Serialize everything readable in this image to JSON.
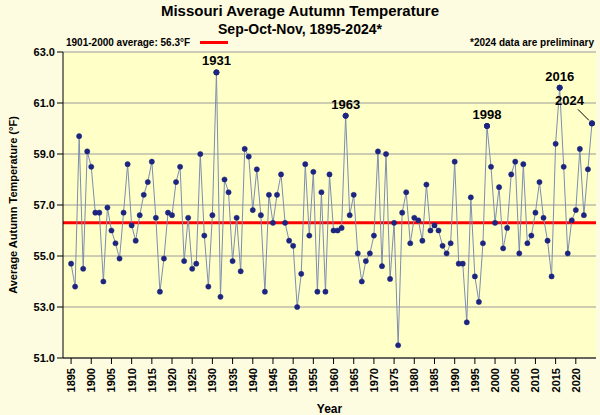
{
  "chart_data": {
    "type": "line",
    "title": "Missouri Average Autumn Temperature",
    "subtitle": "Sep-Oct-Nov, 1895-2024*",
    "note": "*2024 data are preliminary",
    "x_label": "Year",
    "y_label": "Average Autumn Temperature (°F)",
    "x": [
      1895,
      1896,
      1897,
      1898,
      1899,
      1900,
      1901,
      1902,
      1903,
      1904,
      1905,
      1906,
      1907,
      1908,
      1909,
      1910,
      1911,
      1912,
      1913,
      1914,
      1915,
      1916,
      1917,
      1918,
      1919,
      1920,
      1921,
      1922,
      1923,
      1924,
      1925,
      1926,
      1927,
      1928,
      1929,
      1930,
      1931,
      1932,
      1933,
      1934,
      1935,
      1936,
      1937,
      1938,
      1939,
      1940,
      1941,
      1942,
      1943,
      1944,
      1945,
      1946,
      1947,
      1948,
      1949,
      1950,
      1951,
      1952,
      1953,
      1954,
      1955,
      1956,
      1957,
      1958,
      1959,
      1960,
      1961,
      1962,
      1963,
      1964,
      1965,
      1966,
      1967,
      1968,
      1969,
      1970,
      1971,
      1972,
      1973,
      1974,
      1975,
      1976,
      1977,
      1978,
      1979,
      1980,
      1981,
      1982,
      1983,
      1984,
      1985,
      1986,
      1987,
      1988,
      1989,
      1990,
      1991,
      1992,
      1993,
      1994,
      1995,
      1996,
      1997,
      1998,
      1999,
      2000,
      2001,
      2002,
      2003,
      2004,
      2005,
      2006,
      2007,
      2008,
      2009,
      2010,
      2011,
      2012,
      2013,
      2014,
      2015,
      2016,
      2017,
      2018,
      2019,
      2020,
      2021,
      2022,
      2023,
      2024
    ],
    "values": [
      54.7,
      53.8,
      59.7,
      54.5,
      59.1,
      58.5,
      56.7,
      56.7,
      54.0,
      56.9,
      56.0,
      55.5,
      54.9,
      56.7,
      58.6,
      56.2,
      55.6,
      56.6,
      57.4,
      57.9,
      58.7,
      56.5,
      53.6,
      54.9,
      56.7,
      56.6,
      57.9,
      58.5,
      54.8,
      56.5,
      54.5,
      54.7,
      59.0,
      55.8,
      53.8,
      56.6,
      62.2,
      53.4,
      58.0,
      57.5,
      54.8,
      56.5,
      54.4,
      59.2,
      58.9,
      56.8,
      58.4,
      56.6,
      53.6,
      57.4,
      56.3,
      57.4,
      58.2,
      56.3,
      55.6,
      55.4,
      53.0,
      54.3,
      58.6,
      55.8,
      58.3,
      53.6,
      57.5,
      53.6,
      58.2,
      56.0,
      56.0,
      56.1,
      60.5,
      56.6,
      57.4,
      55.1,
      54.0,
      54.8,
      55.1,
      55.8,
      59.1,
      54.6,
      59.0,
      54.1,
      56.3,
      51.5,
      56.7,
      57.5,
      55.5,
      56.5,
      56.4,
      55.6,
      57.8,
      56.0,
      56.2,
      56.0,
      55.4,
      55.1,
      55.5,
      58.7,
      54.7,
      54.7,
      52.4,
      57.3,
      54.2,
      53.2,
      55.5,
      60.1,
      58.5,
      56.3,
      57.7,
      55.3,
      56.1,
      58.2,
      58.7,
      55.1,
      58.6,
      55.5,
      55.8,
      56.7,
      57.9,
      56.5,
      55.6,
      54.2,
      59.4,
      61.6,
      58.5,
      55.1,
      56.4,
      56.8,
      59.2,
      56.6,
      58.4,
      60.2
    ],
    "color": "#1c2580",
    "marker": "circle",
    "xlim": [
      1893,
      2025
    ],
    "xticks": [
      1895,
      1900,
      1905,
      1910,
      1915,
      1920,
      1925,
      1930,
      1935,
      1940,
      1945,
      1950,
      1955,
      1960,
      1965,
      1970,
      1975,
      1980,
      1985,
      1990,
      1995,
      2000,
      2005,
      2010,
      2015,
      2020
    ],
    "ylim": [
      51,
      63
    ],
    "yticks": [
      {
        "value": 51,
        "label": "51.0"
      },
      {
        "value": 53,
        "label": "53.0"
      },
      {
        "value": 55,
        "label": "55.0"
      },
      {
        "value": 57,
        "label": "57.0"
      },
      {
        "value": 59,
        "label": "59.0"
      },
      {
        "value": 61,
        "label": "61.0"
      },
      {
        "value": 63,
        "label": "63.0"
      }
    ],
    "grid": true,
    "average": {
      "value": 56.3,
      "label": "1901-2000 average: 56.3°F",
      "color": "#ff0000"
    },
    "annotations": [
      {
        "x": 1931,
        "text": "1931"
      },
      {
        "x": 1963,
        "text": "1963"
      },
      {
        "x": 1998,
        "text": "1998"
      },
      {
        "x": 2016,
        "text": "2016"
      },
      {
        "x": 2024,
        "text": "2024"
      }
    ]
  }
}
